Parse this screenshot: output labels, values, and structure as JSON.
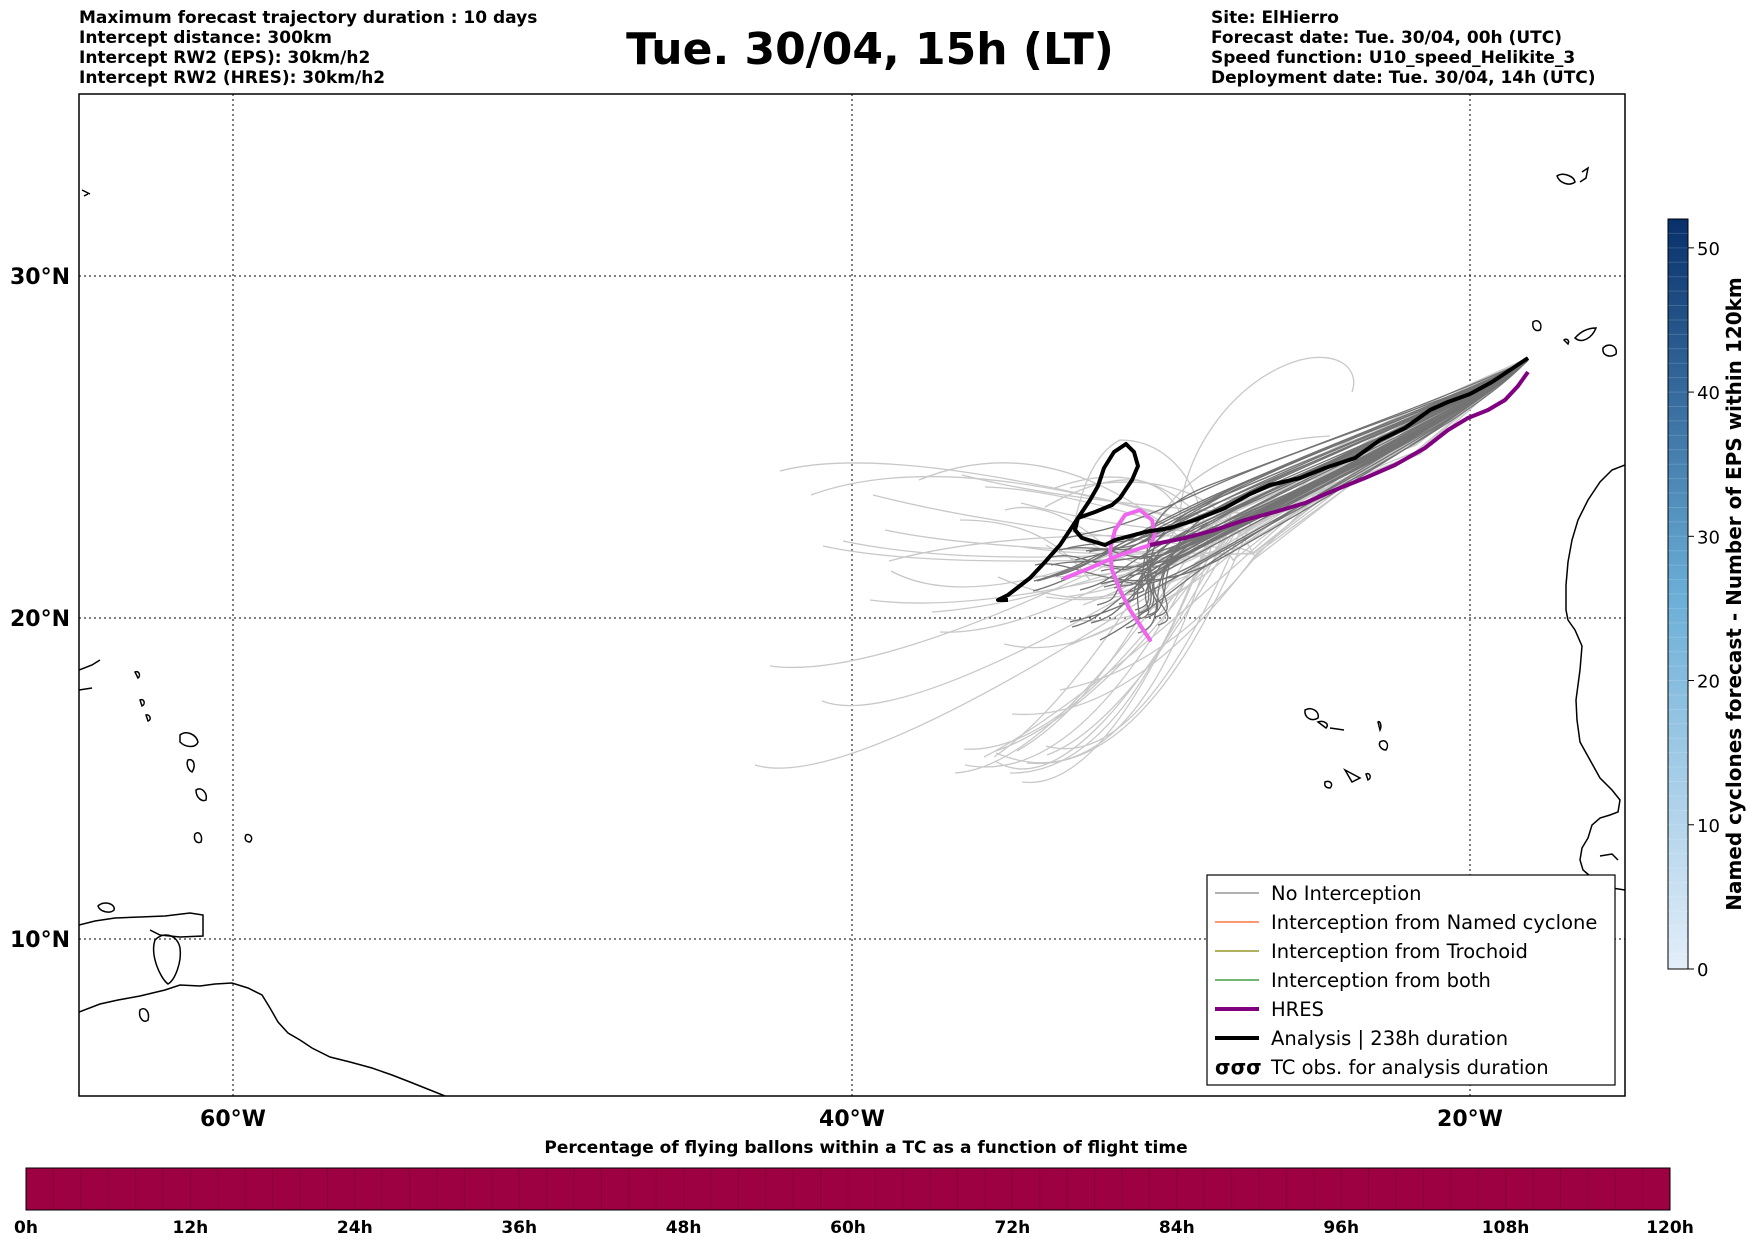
{
  "title": "Tue. 30/04, 15h (LT)",
  "info_left": [
    "Maximum forecast trajectory duration : 10 days",
    "Intercept distance: 300km",
    "Intercept RW2 (EPS):  30km/h2",
    "Intercept RW2 (HRES): 30km/h2"
  ],
  "info_right": [
    "Site: ElHierro",
    "Forecast date: Tue. 30/04, 00h (UTC)",
    "Speed function: U10_speed_Helikite_3",
    "Deployment date: Tue. 30/04, 14h (UTC)"
  ],
  "map": {
    "lat_labels": [
      "30°N",
      "20°N",
      "10°N"
    ],
    "lon_labels": [
      "60°W",
      "40°W",
      "20°W"
    ],
    "gridline_style": "dotted",
    "land_color": "#ffffff",
    "coast_color": "#000000"
  },
  "legend": {
    "placement": "bottom-right",
    "items": [
      {
        "label": "No Interception",
        "color": "#808080"
      },
      {
        "label": "Interception from Named cyclone",
        "color": "#ff5a1e"
      },
      {
        "label": "Interception from Trochoid",
        "color": "#808000"
      },
      {
        "label": "Interception from both",
        "color": "#228b22"
      },
      {
        "label": "HRES",
        "color": "#800080"
      },
      {
        "label": "Analysis | 238h duration",
        "color": "#000000"
      },
      {
        "label": "TC obs. for analysis duration",
        "color": "#000000",
        "icon": "cyclone-symbols-icon"
      }
    ]
  },
  "track_colors": {
    "eps_short": "#c8c8c8",
    "eps_long": "#737373",
    "hres": "#800080",
    "hres_early": "#ee66ee",
    "analysis": "#000000"
  },
  "colorbar_right": {
    "label": "Named cyclones forecast - Number of EPS within 120km",
    "ticks": [
      "0",
      "10",
      "20",
      "30",
      "40",
      "50"
    ],
    "min": 0,
    "max": 52,
    "color_low": "#e3eef9",
    "color_high": "#08306b"
  },
  "colorbar_bottom": {
    "title": "Percentage of flying ballons within a TC as a function of flight time",
    "ticks": [
      "0h",
      "12h",
      "24h",
      "36h",
      "48h",
      "60h",
      "72h",
      "84h",
      "96h",
      "108h",
      "120h"
    ],
    "fill_color": "#9e0142"
  }
}
